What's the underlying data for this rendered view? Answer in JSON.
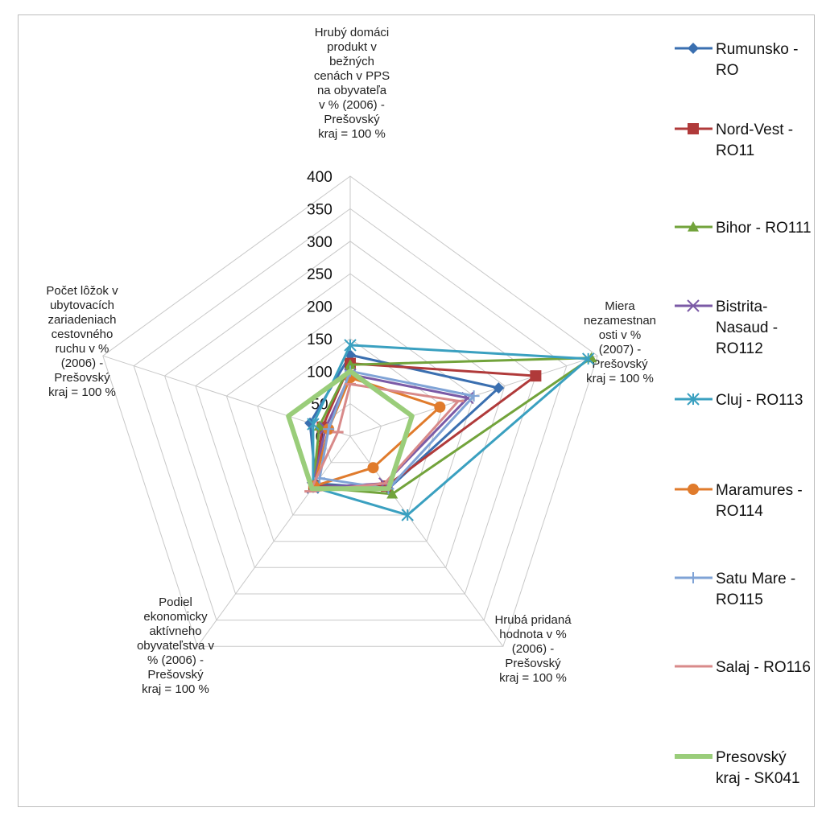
{
  "chart_data": {
    "type": "radar",
    "axes": [
      {
        "label_lines": [
          "Hrubý domáci",
          "produkt v",
          "bežných",
          "cenách v PPS",
          "na obyvateľa",
          "v % (2006) -",
          "Prešovský",
          "kraj = 100 %"
        ]
      },
      {
        "label_lines": [
          "Miera",
          "nezamestnan",
          "osti v %",
          "(2007) -",
          "Prešovský",
          "kraj = 100 %"
        ]
      },
      {
        "label_lines": [
          "Hrubá pridaná",
          "hodnota v %",
          "(2006) -",
          "Prešovský",
          "kraj = 100 %"
        ]
      },
      {
        "label_lines": [
          "Podiel",
          "ekonomicky",
          "aktívneho",
          "obyvateľstva v",
          "% (2006) -",
          "Prešovský",
          "kraj = 100 %"
        ]
      },
      {
        "label_lines": [
          "Počet lôžok v",
          "ubytovacích",
          "zariadeniach",
          "cestovného",
          "ruchu  v %",
          "(2006) -",
          "Prešovský",
          "kraj = 100 %"
        ]
      }
    ],
    "r_ticks": [
      "0",
      "50",
      "100",
      "150",
      "200",
      "250",
      "300",
      "350",
      "400"
    ],
    "r_range": [
      0,
      400
    ],
    "series": [
      {
        "name_lines": [
          "Rumunsko -",
          "RO"
        ],
        "color": "#3a6fb0",
        "marker": "diamond",
        "values": [
          125,
          240,
          100,
          90,
          65
        ]
      },
      {
        "name_lines": [
          "Nord-Vest -",
          "RO11"
        ],
        "color": "#b03a3a",
        "marker": "square",
        "values": [
          112,
          300,
          95,
          95,
          45
        ]
      },
      {
        "name_lines": [
          "Bihor - RO111"
        ],
        "color": "#72a33b",
        "marker": "triangle",
        "values": [
          110,
          390,
          110,
          97,
          50
        ]
      },
      {
        "name_lines": [
          "Bistrita-",
          "Nasaud -",
          "RO112"
        ],
        "color": "#7b5aa6",
        "marker": "x",
        "values": [
          95,
          190,
          90,
          98,
          40
        ]
      },
      {
        "name_lines": [
          "Cluj - RO113"
        ],
        "color": "#3aa0c0",
        "marker": "star",
        "values": [
          140,
          385,
          150,
          97,
          60
        ]
      },
      {
        "name_lines": [
          "Maramures -",
          "RO114"
        ],
        "color": "#e07b2c",
        "marker": "circle",
        "values": [
          90,
          145,
          60,
          95,
          35
        ]
      },
      {
        "name_lines": [
          "Satu Mare -",
          "RO115"
        ],
        "color": "#7fa3d6",
        "marker": "plus",
        "values": [
          100,
          200,
          100,
          80,
          35
        ]
      },
      {
        "name_lines": [
          "Salaj - RO116"
        ],
        "color": "#d88a8a",
        "marker": "dash",
        "values": [
          80,
          175,
          90,
          105,
          20
        ]
      },
      {
        "name_lines": [
          "Presovský",
          "kraj - SK041"
        ],
        "color": "#9acd7a",
        "marker": "none",
        "values": [
          100,
          100,
          100,
          100,
          100
        ]
      }
    ],
    "grid": true,
    "legend_position": "right"
  }
}
